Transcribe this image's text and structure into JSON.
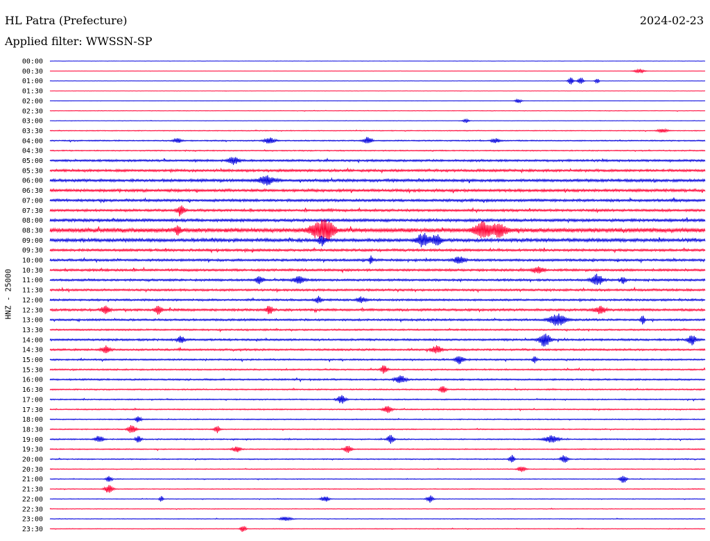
{
  "header": {
    "station": "HL Patra (Prefecture)",
    "date": "2024-02-23",
    "filter": "Applied filter: WWSSN-SP"
  },
  "colors": {
    "even_trace": "#0000dd",
    "odd_trace": "#ff0033",
    "background": "#ffffff"
  },
  "chart_data": {
    "type": "line",
    "ylabel": "HNZ - 25000",
    "row_labels": [
      "00:00",
      "00:30",
      "01:00",
      "01:30",
      "02:00",
      "02:30",
      "03:00",
      "03:30",
      "04:00",
      "04:30",
      "05:00",
      "05:30",
      "06:00",
      "06:30",
      "07:00",
      "07:30",
      "08:00",
      "08:30",
      "09:00",
      "09:30",
      "10:00",
      "10:30",
      "11:00",
      "11:30",
      "12:00",
      "12:30",
      "13:00",
      "13:30",
      "14:00",
      "14:30",
      "15:00",
      "15:30",
      "16:00",
      "16:30",
      "17:00",
      "17:30",
      "18:00",
      "18:30",
      "19:00",
      "19:30",
      "20:00",
      "20:30",
      "21:00",
      "21:30",
      "22:00",
      "22:30",
      "23:00",
      "23:30"
    ],
    "trace_colors": "alternating blue/red per row",
    "noise_level": [
      0.1,
      0.15,
      0.2,
      0.2,
      0.15,
      0.4,
      0.3,
      0.6,
      0.9,
      0.8,
      1.6,
      1.8,
      2.0,
      2.0,
      1.9,
      1.8,
      2.1,
      3.0,
      2.4,
      1.8,
      1.7,
      1.7,
      1.6,
      1.6,
      1.5,
      1.7,
      1.5,
      1.2,
      1.5,
      1.4,
      1.2,
      1.1,
      1.2,
      1.0,
      0.9,
      0.9,
      0.8,
      0.8,
      0.9,
      0.8,
      0.8,
      0.6,
      0.6,
      0.6,
      0.5,
      0.5,
      0.5,
      0.5
    ],
    "events": [
      {
        "row": 1,
        "t": 0.9,
        "amp": 3,
        "width": 0.008
      },
      {
        "row": 2,
        "t": 0.795,
        "amp": 5,
        "width": 0.004
      },
      {
        "row": 2,
        "t": 0.81,
        "amp": 6,
        "width": 0.004
      },
      {
        "row": 2,
        "t": 0.835,
        "amp": 4,
        "width": 0.003
      },
      {
        "row": 4,
        "t": 0.715,
        "amp": 3,
        "width": 0.005
      },
      {
        "row": 6,
        "t": 0.635,
        "amp": 3,
        "width": 0.004
      },
      {
        "row": 7,
        "t": 0.935,
        "amp": 3,
        "width": 0.007
      },
      {
        "row": 8,
        "t": 0.195,
        "amp": 3,
        "width": 0.006
      },
      {
        "row": 8,
        "t": 0.335,
        "amp": 4,
        "width": 0.008
      },
      {
        "row": 8,
        "t": 0.485,
        "amp": 5,
        "width": 0.006
      },
      {
        "row": 8,
        "t": 0.68,
        "amp": 3,
        "width": 0.006
      },
      {
        "row": 10,
        "t": 0.28,
        "amp": 5,
        "width": 0.008
      },
      {
        "row": 12,
        "t": 0.33,
        "amp": 6,
        "width": 0.012
      },
      {
        "row": 15,
        "t": 0.2,
        "amp": 6,
        "width": 0.006
      },
      {
        "row": 17,
        "t": 0.195,
        "amp": 7,
        "width": 0.004
      },
      {
        "row": 17,
        "t": 0.41,
        "amp": 11,
        "width": 0.014
      },
      {
        "row": 17,
        "t": 0.425,
        "amp": 10,
        "width": 0.01
      },
      {
        "row": 17,
        "t": 0.66,
        "amp": 11,
        "width": 0.012
      },
      {
        "row": 17,
        "t": 0.685,
        "amp": 9,
        "width": 0.012
      },
      {
        "row": 18,
        "t": 0.415,
        "amp": 7,
        "width": 0.005
      },
      {
        "row": 18,
        "t": 0.57,
        "amp": 9,
        "width": 0.01
      },
      {
        "row": 18,
        "t": 0.59,
        "amp": 8,
        "width": 0.006
      },
      {
        "row": 20,
        "t": 0.49,
        "amp": 6,
        "width": 0.003
      },
      {
        "row": 20,
        "t": 0.625,
        "amp": 5,
        "width": 0.008
      },
      {
        "row": 21,
        "t": 0.745,
        "amp": 4,
        "width": 0.008
      },
      {
        "row": 22,
        "t": 0.32,
        "amp": 5,
        "width": 0.006
      },
      {
        "row": 22,
        "t": 0.38,
        "amp": 5,
        "width": 0.008
      },
      {
        "row": 22,
        "t": 0.835,
        "amp": 8,
        "width": 0.008
      },
      {
        "row": 22,
        "t": 0.875,
        "amp": 5,
        "width": 0.004
      },
      {
        "row": 24,
        "t": 0.41,
        "amp": 5,
        "width": 0.004
      },
      {
        "row": 24,
        "t": 0.475,
        "amp": 4,
        "width": 0.006
      },
      {
        "row": 25,
        "t": 0.085,
        "amp": 6,
        "width": 0.006
      },
      {
        "row": 25,
        "t": 0.165,
        "amp": 6,
        "width": 0.005
      },
      {
        "row": 25,
        "t": 0.335,
        "amp": 6,
        "width": 0.005
      },
      {
        "row": 25,
        "t": 0.84,
        "amp": 5,
        "width": 0.008
      },
      {
        "row": 26,
        "t": 0.775,
        "amp": 8,
        "width": 0.012
      },
      {
        "row": 26,
        "t": 0.905,
        "amp": 6,
        "width": 0.003
      },
      {
        "row": 28,
        "t": 0.2,
        "amp": 5,
        "width": 0.005
      },
      {
        "row": 28,
        "t": 0.755,
        "amp": 10,
        "width": 0.008
      },
      {
        "row": 28,
        "t": 0.98,
        "amp": 7,
        "width": 0.006
      },
      {
        "row": 29,
        "t": 0.085,
        "amp": 5,
        "width": 0.006
      },
      {
        "row": 29,
        "t": 0.59,
        "amp": 5,
        "width": 0.008
      },
      {
        "row": 30,
        "t": 0.625,
        "amp": 6,
        "width": 0.006
      },
      {
        "row": 30,
        "t": 0.74,
        "amp": 5,
        "width": 0.003
      },
      {
        "row": 31,
        "t": 0.51,
        "amp": 6,
        "width": 0.005
      },
      {
        "row": 32,
        "t": 0.535,
        "amp": 5,
        "width": 0.008
      },
      {
        "row": 33,
        "t": 0.6,
        "amp": 5,
        "width": 0.005
      },
      {
        "row": 34,
        "t": 0.445,
        "amp": 6,
        "width": 0.006
      },
      {
        "row": 35,
        "t": 0.515,
        "amp": 5,
        "width": 0.006
      },
      {
        "row": 36,
        "t": 0.135,
        "amp": 5,
        "width": 0.004
      },
      {
        "row": 37,
        "t": 0.125,
        "amp": 6,
        "width": 0.006
      },
      {
        "row": 37,
        "t": 0.255,
        "amp": 5,
        "width": 0.004
      },
      {
        "row": 38,
        "t": 0.075,
        "amp": 5,
        "width": 0.006
      },
      {
        "row": 38,
        "t": 0.135,
        "amp": 5,
        "width": 0.004
      },
      {
        "row": 38,
        "t": 0.52,
        "amp": 6,
        "width": 0.005
      },
      {
        "row": 38,
        "t": 0.765,
        "amp": 5,
        "width": 0.01
      },
      {
        "row": 39,
        "t": 0.285,
        "amp": 4,
        "width": 0.006
      },
      {
        "row": 39,
        "t": 0.455,
        "amp": 6,
        "width": 0.005
      },
      {
        "row": 40,
        "t": 0.705,
        "amp": 6,
        "width": 0.004
      },
      {
        "row": 40,
        "t": 0.785,
        "amp": 6,
        "width": 0.005
      },
      {
        "row": 41,
        "t": 0.72,
        "amp": 4,
        "width": 0.006
      },
      {
        "row": 42,
        "t": 0.09,
        "amp": 4,
        "width": 0.004
      },
      {
        "row": 42,
        "t": 0.875,
        "amp": 6,
        "width": 0.005
      },
      {
        "row": 43,
        "t": 0.09,
        "amp": 6,
        "width": 0.006
      },
      {
        "row": 44,
        "t": 0.17,
        "amp": 4,
        "width": 0.003
      },
      {
        "row": 44,
        "t": 0.42,
        "amp": 4,
        "width": 0.006
      },
      {
        "row": 44,
        "t": 0.58,
        "amp": 5,
        "width": 0.005
      },
      {
        "row": 46,
        "t": 0.36,
        "amp": 3,
        "width": 0.008
      },
      {
        "row": 47,
        "t": 0.295,
        "amp": 5,
        "width": 0.004
      }
    ]
  }
}
